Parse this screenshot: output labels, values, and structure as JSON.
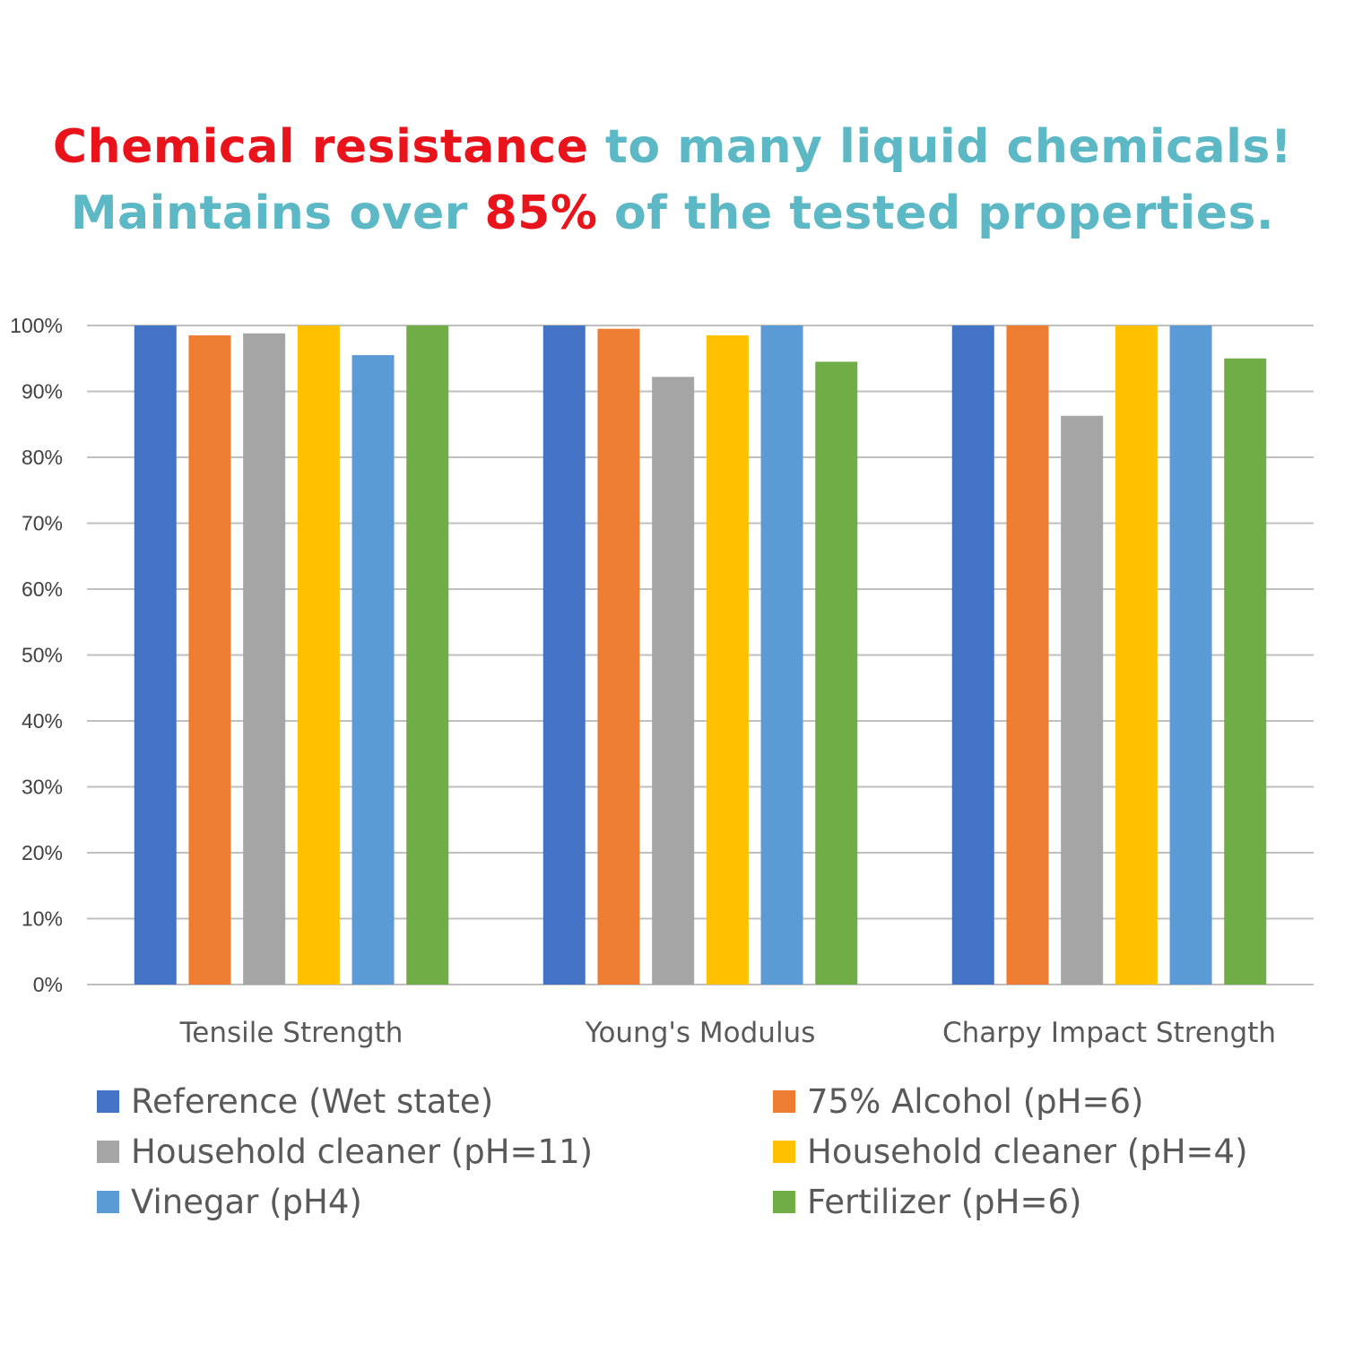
{
  "headline": {
    "line1_red": "Chemical resistance",
    "line1_teal": " to many liquid chemicals!",
    "line2_teal_a": "Maintains over ",
    "line2_red": "85%",
    "line2_teal_b": " of the tested properties."
  },
  "colors": {
    "headline_red": "#e8131b",
    "headline_teal": "#5bb8c4",
    "gridline": "#bfbfbf"
  },
  "chart_data": {
    "type": "bar",
    "title": "",
    "xlabel": "",
    "ylabel": "",
    "ylim": [
      0,
      1
    ],
    "yticks": [
      "0%",
      "10%",
      "20%",
      "30%",
      "40%",
      "50%",
      "60%",
      "70%",
      "80%",
      "90%",
      "100%"
    ],
    "grid": true,
    "legend_position": "bottom",
    "categories": [
      "Tensile Strength",
      "Young's Modulus",
      "Charpy Impact Strength"
    ],
    "series": [
      {
        "name": "Reference (Wet state)",
        "color": "#4472c4",
        "values": [
          1.0,
          1.0,
          1.0
        ]
      },
      {
        "name": "75% Alcohol (pH=6)",
        "color": "#ed7d31",
        "values": [
          0.985,
          0.995,
          1.0
        ]
      },
      {
        "name": "Household cleaner (pH=11)",
        "color": "#a5a5a5",
        "values": [
          0.988,
          0.922,
          0.863
        ]
      },
      {
        "name": "Household cleaner (pH=4)",
        "color": "#ffc000",
        "values": [
          1.0,
          0.985,
          1.0
        ]
      },
      {
        "name": "Vinegar (pH4)",
        "color": "#5b9bd5",
        "values": [
          0.955,
          1.0,
          1.0
        ]
      },
      {
        "name": "Fertilizer (pH=6)",
        "color": "#70ad47",
        "values": [
          1.0,
          0.945,
          0.95
        ]
      }
    ]
  }
}
